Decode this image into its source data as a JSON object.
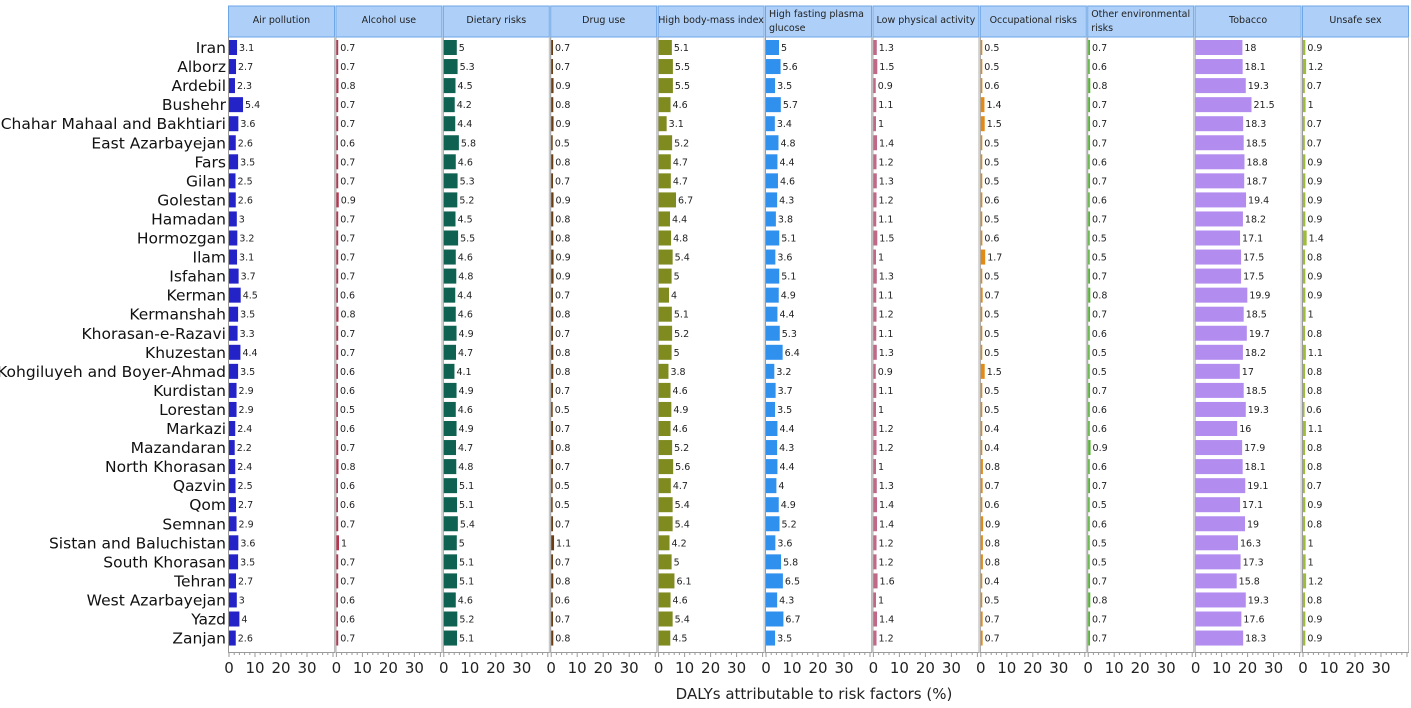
{
  "chart_data": {
    "type": "bar",
    "orientation": "horizontal",
    "layout": "small-multiples",
    "xlabel": "DALYs attributable to risk factors (%)",
    "xlim": [
      0,
      40
    ],
    "x_ticks": [
      "0",
      "10",
      "20",
      "30"
    ],
    "categories": [
      "Iran",
      "Alborz",
      "Ardebil",
      "Bushehr",
      "Chahar Mahaal and Bakhtiari",
      "East Azarbayejan",
      "Fars",
      "Gilan",
      "Golestan",
      "Hamadan",
      "Hormozgan",
      "Ilam",
      "Isfahan",
      "Kerman",
      "Kermanshah",
      "Khorasan-e-Razavi",
      "Khuzestan",
      "Kohgiluyeh and Boyer-Ahmad",
      "Kurdistan",
      "Lorestan",
      "Markazi",
      "Mazandaran",
      "North Khorasan",
      "Qazvin",
      "Qom",
      "Semnan",
      "Sistan and Baluchistan",
      "South Khorasan",
      "Tehran",
      "West Azarbayejan",
      "Yazd",
      "Zanjan"
    ],
    "series": [
      {
        "name": "Air pollution",
        "color": "#2323c8",
        "values": [
          3.1,
          2.7,
          2.3,
          5.4,
          3.6,
          2.6,
          3.5,
          2.5,
          2.6,
          3,
          3.2,
          3.1,
          3.7,
          4.5,
          3.5,
          3.3,
          4.4,
          3.5,
          2.9,
          2.9,
          2.4,
          2.2,
          2.4,
          2.5,
          2.7,
          2.9,
          3.6,
          3.5,
          2.7,
          3,
          4,
          2.6
        ]
      },
      {
        "name": "Alcohol use",
        "color": "#b8354f",
        "values": [
          0.7,
          0.7,
          0.8,
          0.7,
          0.7,
          0.6,
          0.7,
          0.7,
          0.9,
          0.7,
          0.7,
          0.7,
          0.7,
          0.6,
          0.8,
          0.7,
          0.7,
          0.6,
          0.6,
          0.5,
          0.6,
          0.7,
          0.8,
          0.6,
          0.6,
          0.7,
          1,
          0.7,
          0.7,
          0.6,
          0.6,
          0.7
        ]
      },
      {
        "name": "Dietary risks",
        "color": "#0f6152",
        "values": [
          5,
          5.3,
          4.5,
          4.2,
          4.4,
          5.8,
          4.6,
          5.3,
          5.2,
          4.5,
          5.5,
          4.6,
          4.8,
          4.4,
          4.6,
          4.9,
          4.7,
          4.1,
          4.9,
          4.6,
          4.9,
          4.7,
          4.8,
          5.1,
          5.1,
          5.4,
          5,
          5.1,
          5.1,
          4.6,
          5.2,
          5.1
        ]
      },
      {
        "name": "Drug use",
        "color": "#6b3d12",
        "values": [
          0.7,
          0.7,
          0.9,
          0.8,
          0.9,
          0.5,
          0.8,
          0.7,
          0.9,
          0.8,
          0.8,
          0.9,
          0.9,
          0.7,
          0.8,
          0.7,
          0.8,
          0.8,
          0.7,
          0.5,
          0.7,
          0.8,
          0.7,
          0.5,
          0.5,
          0.7,
          1.1,
          0.7,
          0.8,
          0.6,
          0.7,
          0.8
        ]
      },
      {
        "name": "High body-mass index",
        "color": "#808b1f",
        "values": [
          5.1,
          5.5,
          5.5,
          4.6,
          3.1,
          5.2,
          4.7,
          4.7,
          6.7,
          4.4,
          4.8,
          5.4,
          5,
          4,
          5.1,
          5.2,
          5,
          3.8,
          4.6,
          4.9,
          4.6,
          5.2,
          5.6,
          4.7,
          5.4,
          5.4,
          4.2,
          5,
          6.1,
          4.6,
          5.4,
          4.5
        ]
      },
      {
        "name": "High fasting plasma glucose",
        "color": "#2f90ee",
        "values": [
          5,
          5.6,
          3.5,
          5.7,
          3.4,
          4.8,
          4.4,
          4.6,
          4.3,
          3.8,
          5.1,
          3.6,
          5.1,
          4.9,
          4.4,
          5.3,
          6.4,
          3.2,
          3.7,
          3.5,
          4.4,
          4.3,
          4.4,
          4,
          4.9,
          5.2,
          3.6,
          5.8,
          6.5,
          4.3,
          6.7,
          3.5
        ]
      },
      {
        "name": "Low physical activity",
        "color": "#c06888",
        "values": [
          1.3,
          1.5,
          0.9,
          1.1,
          1,
          1.4,
          1.2,
          1.3,
          1.2,
          1.1,
          1.5,
          1,
          1.3,
          1.1,
          1.2,
          1.1,
          1.3,
          0.9,
          1.1,
          1,
          1.2,
          1.2,
          1,
          1.3,
          1.4,
          1.4,
          1.2,
          1.2,
          1.6,
          1,
          1.4,
          1.2
        ]
      },
      {
        "name": "Occupational risks",
        "color": "#e08a18",
        "values": [
          0.5,
          0.5,
          0.6,
          1.4,
          1.5,
          0.5,
          0.5,
          0.5,
          0.6,
          0.5,
          0.6,
          1.7,
          0.5,
          0.7,
          0.5,
          0.5,
          0.5,
          1.5,
          0.5,
          0.5,
          0.4,
          0.4,
          0.8,
          0.7,
          0.6,
          0.9,
          0.8,
          0.8,
          0.4,
          0.5,
          0.7,
          0.7
        ]
      },
      {
        "name": "Other environmental risks",
        "color": "#56b436",
        "values": [
          0.7,
          0.6,
          0.8,
          0.7,
          0.7,
          0.7,
          0.6,
          0.7,
          0.6,
          0.7,
          0.5,
          0.5,
          0.7,
          0.8,
          0.7,
          0.6,
          0.5,
          0.5,
          0.7,
          0.6,
          0.6,
          0.9,
          0.6,
          0.7,
          0.5,
          0.6,
          0.5,
          0.5,
          0.7,
          0.8,
          0.7,
          0.7
        ]
      },
      {
        "name": "Tobacco",
        "color": "#b38cf0",
        "values": [
          18,
          18.1,
          19.3,
          21.5,
          18.3,
          18.5,
          18.8,
          18.7,
          19.4,
          18.2,
          17.1,
          17.5,
          17.5,
          19.9,
          18.5,
          19.7,
          18.2,
          17,
          18.5,
          19.3,
          16,
          17.9,
          18.1,
          19.1,
          17.1,
          19,
          16.3,
          17.3,
          15.8,
          19.3,
          17.6,
          18.3
        ]
      },
      {
        "name": "Unsafe sex",
        "color": "#9cbc3a",
        "values": [
          0.9,
          1.2,
          0.7,
          1,
          0.7,
          0.7,
          0.9,
          0.9,
          0.9,
          0.9,
          1.4,
          0.8,
          0.9,
          0.9,
          1,
          0.8,
          1.1,
          0.8,
          0.8,
          0.6,
          1.1,
          0.8,
          0.8,
          0.7,
          0.9,
          0.8,
          1,
          1,
          1.2,
          0.8,
          0.9,
          0.9
        ]
      }
    ],
    "header_lines": [
      [
        "Air pollution"
      ],
      [
        "Alcohol use"
      ],
      [
        "Dietary risks"
      ],
      [
        "Drug use"
      ],
      [
        "High body-mass index"
      ],
      [
        "High fasting plasma",
        "glucose"
      ],
      [
        "Low physical activity"
      ],
      [
        "Occupational risks"
      ],
      [
        "Other environmental",
        "risks"
      ],
      [
        "Tobacco"
      ],
      [
        "Unsafe sex"
      ]
    ],
    "header_bg": "#aed0f8",
    "header_border": "#6ea6e6",
    "grid": false,
    "legend": "none"
  }
}
